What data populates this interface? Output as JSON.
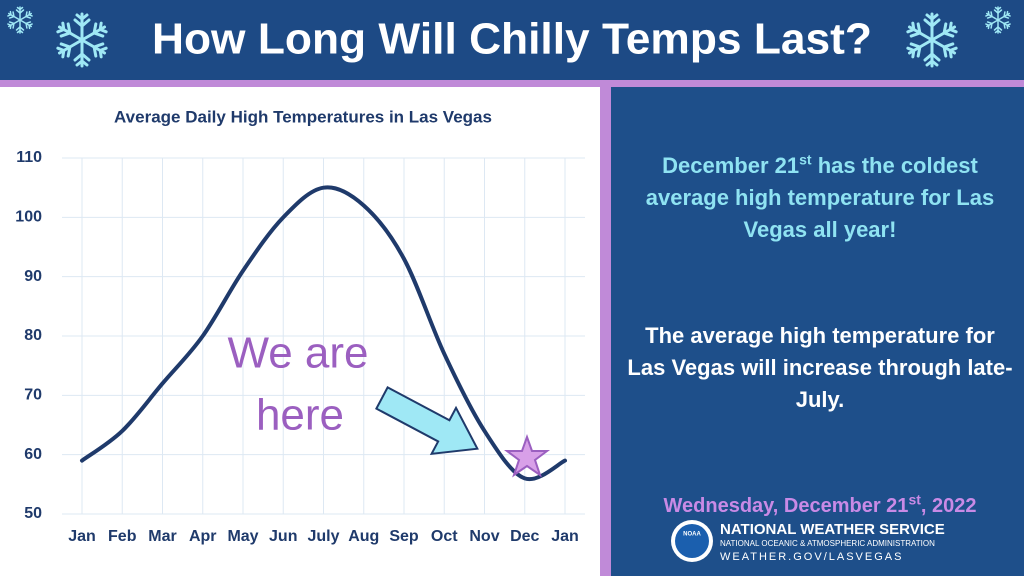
{
  "header": {
    "title": "How Long Will Chilly Temps Last?"
  },
  "chart_data": {
    "type": "line",
    "title": "Average Daily High Temperatures in Las Vegas",
    "categories": [
      "Jan",
      "Feb",
      "Mar",
      "Apr",
      "May",
      "Jun",
      "July",
      "Aug",
      "Sep",
      "Oct",
      "Nov",
      "Dec",
      "Jan"
    ],
    "values": [
      59,
      64,
      72,
      80,
      91,
      100,
      105,
      102,
      93,
      77,
      64,
      56,
      59
    ],
    "color": "#1f3a6b",
    "ylim": [
      50,
      110
    ],
    "yticks": [
      50,
      60,
      70,
      80,
      90,
      100,
      110
    ],
    "grid": true,
    "annotation": [
      "We are",
      "here"
    ]
  },
  "panel": {
    "note1": {
      "before": "December 21",
      "sup": "st",
      "after": " has the coldest average high temperature for Las Vegas all year!"
    },
    "note2": "The average high temperature for Las Vegas will increase through late-July.",
    "date": {
      "before": "Wednesday, December 21",
      "sup": "st",
      "after": ", 2022"
    }
  },
  "logo": {
    "emblem": "NOAA",
    "name": "NATIONAL WEATHER SERVICE",
    "agency": "NATIONAL OCEANIC & ATMOSPHERIC ADMINISTRATION",
    "url": "WEATHER.GOV/LASVEGAS"
  }
}
